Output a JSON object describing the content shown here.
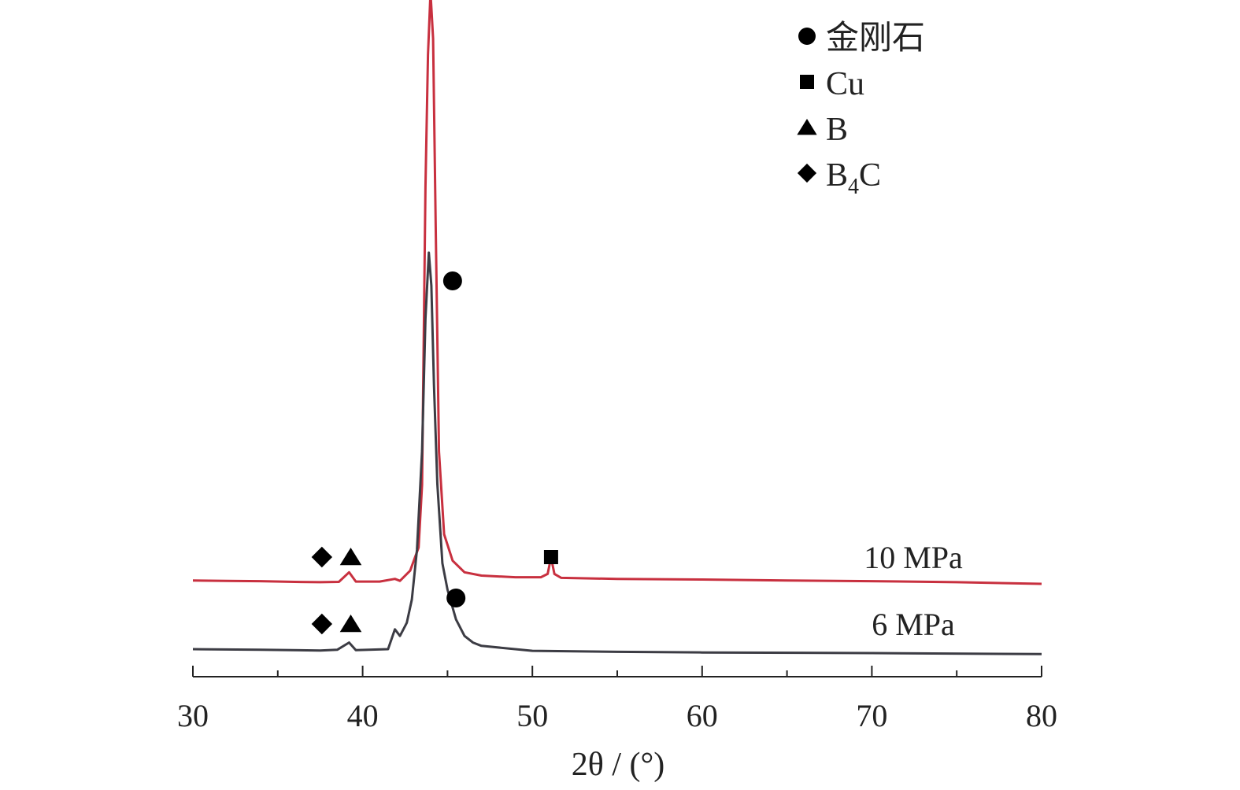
{
  "chart_data": {
    "type": "line",
    "xlabel": "2θ / (°)",
    "xlim": [
      30,
      80
    ],
    "xticks": [
      30,
      40,
      50,
      60,
      70,
      80
    ],
    "ylabel": "",
    "yticks_shown": false,
    "legend": {
      "placement": "top-center",
      "entries": [
        {
          "marker": "circle",
          "label": "金刚石",
          "sub": ""
        },
        {
          "marker": "square",
          "label": "Cu",
          "sub": ""
        },
        {
          "marker": "triangle",
          "label": "B",
          "sub": ""
        },
        {
          "marker": "diamond",
          "label": "B",
          "sub": "4",
          "suffix": "C"
        }
      ]
    },
    "series": [
      {
        "name": "10 MPa",
        "color": "#c8303f",
        "y": [
          [
            30,
            0.1
          ],
          [
            32,
            0.09
          ],
          [
            34,
            0.08
          ],
          [
            36,
            0.06
          ],
          [
            37.5,
            0.05
          ],
          [
            38.6,
            0.06
          ],
          [
            39.2,
            0.35
          ],
          [
            39.6,
            0.07
          ],
          [
            41,
            0.07
          ],
          [
            41.9,
            0.15
          ],
          [
            42.2,
            0.09
          ],
          [
            42.8,
            0.4
          ],
          [
            43.3,
            1.1
          ],
          [
            43.5,
            3.0
          ],
          [
            43.7,
            12.0
          ],
          [
            43.85,
            16.0
          ],
          [
            44.0,
            18.0
          ],
          [
            44.15,
            16.5
          ],
          [
            44.3,
            11.0
          ],
          [
            44.5,
            4.0
          ],
          [
            44.8,
            1.5
          ],
          [
            45.3,
            0.7
          ],
          [
            46,
            0.35
          ],
          [
            47,
            0.25
          ],
          [
            49,
            0.2
          ],
          [
            50.5,
            0.2
          ],
          [
            50.9,
            0.3
          ],
          [
            51.1,
            0.8
          ],
          [
            51.3,
            0.3
          ],
          [
            51.7,
            0.18
          ],
          [
            55,
            0.15
          ],
          [
            60,
            0.13
          ],
          [
            65,
            0.1
          ],
          [
            70,
            0.08
          ],
          [
            75,
            0.05
          ],
          [
            80,
            0.0
          ]
        ]
      },
      {
        "name": "6 MPa",
        "color": "#3c3c44",
        "y": [
          [
            30,
            0.0
          ],
          [
            34,
            -0.02
          ],
          [
            37.5,
            -0.04
          ],
          [
            38.5,
            -0.02
          ],
          [
            39.2,
            0.2
          ],
          [
            39.6,
            -0.03
          ],
          [
            41.5,
            0.0
          ],
          [
            41.9,
            0.6
          ],
          [
            42.2,
            0.4
          ],
          [
            42.6,
            0.8
          ],
          [
            42.9,
            1.5
          ],
          [
            43.2,
            3.0
          ],
          [
            43.5,
            6.0
          ],
          [
            43.7,
            10.0
          ],
          [
            43.9,
            12.0
          ],
          [
            44.05,
            11.0
          ],
          [
            44.2,
            8.0
          ],
          [
            44.4,
            5.0
          ],
          [
            44.7,
            2.6
          ],
          [
            45.0,
            1.8
          ],
          [
            45.5,
            0.9
          ],
          [
            46.0,
            0.4
          ],
          [
            46.5,
            0.2
          ],
          [
            47,
            0.1
          ],
          [
            50,
            -0.05
          ],
          [
            55,
            -0.08
          ],
          [
            60,
            -0.1
          ],
          [
            70,
            -0.12
          ],
          [
            80,
            -0.15
          ]
        ]
      }
    ],
    "annotations": [
      {
        "marker": "diamond",
        "x": 37.6,
        "series": "10 MPa"
      },
      {
        "marker": "triangle",
        "x": 39.3,
        "series": "10 MPa"
      },
      {
        "marker": "circle",
        "x": 45.3,
        "series": "10 MPa"
      },
      {
        "marker": "square",
        "x": 51.1,
        "series": "10 MPa"
      },
      {
        "marker": "diamond",
        "x": 37.6,
        "series": "6 MPa"
      },
      {
        "marker": "triangle",
        "x": 39.3,
        "series": "6 MPa"
      },
      {
        "marker": "circle",
        "x": 45.5,
        "series": "6 MPa"
      }
    ]
  }
}
